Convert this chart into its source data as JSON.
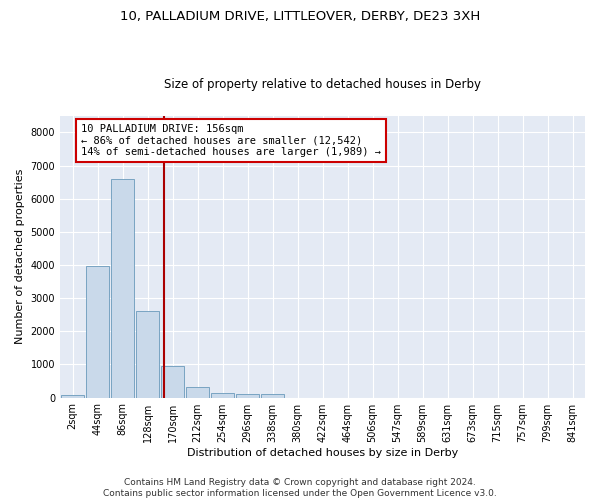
{
  "title1": "10, PALLADIUM DRIVE, LITTLEOVER, DERBY, DE23 3XH",
  "title2": "Size of property relative to detached houses in Derby",
  "xlabel": "Distribution of detached houses by size in Derby",
  "ylabel": "Number of detached properties",
  "bar_color": "#c9d9ea",
  "bar_edge_color": "#6a9abb",
  "background_color": "#e4eaf4",
  "grid_color": "#ffffff",
  "bin_labels": [
    "2sqm",
    "44sqm",
    "86sqm",
    "128sqm",
    "170sqm",
    "212sqm",
    "254sqm",
    "296sqm",
    "338sqm",
    "380sqm",
    "422sqm",
    "464sqm",
    "506sqm",
    "547sqm",
    "589sqm",
    "631sqm",
    "673sqm",
    "715sqm",
    "757sqm",
    "799sqm",
    "841sqm"
  ],
  "bar_heights": [
    75,
    3970,
    6580,
    2620,
    950,
    305,
    130,
    110,
    95,
    0,
    0,
    0,
    0,
    0,
    0,
    0,
    0,
    0,
    0,
    0,
    0
  ],
  "vline_color": "#aa0000",
  "annotation_text": "10 PALLADIUM DRIVE: 156sqm\n← 86% of detached houses are smaller (12,542)\n14% of semi-detached houses are larger (1,989) →",
  "annotation_box_color": "white",
  "annotation_box_edge": "#cc0000",
  "ylim": [
    0,
    8500
  ],
  "yticks": [
    0,
    1000,
    2000,
    3000,
    4000,
    5000,
    6000,
    7000,
    8000
  ],
  "footer1": "Contains HM Land Registry data © Crown copyright and database right 2024.",
  "footer2": "Contains public sector information licensed under the Open Government Licence v3.0.",
  "title1_fontsize": 9.5,
  "title2_fontsize": 8.5,
  "axis_label_fontsize": 8,
  "tick_fontsize": 7,
  "annotation_fontsize": 7.5,
  "footer_fontsize": 6.5
}
